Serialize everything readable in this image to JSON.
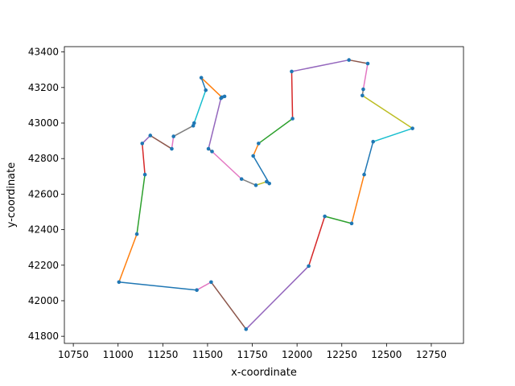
{
  "chart_data": {
    "type": "line",
    "title": "",
    "xlabel": "x-coordinate",
    "ylabel": "y-coordinate",
    "xlim": [
      10700,
      12930
    ],
    "ylim": [
      41760,
      43430
    ],
    "xticks": [
      10750,
      11000,
      11250,
      11500,
      11750,
      12000,
      12250,
      12500,
      12750
    ],
    "yticks": [
      41800,
      42000,
      42200,
      42400,
      42600,
      42800,
      43000,
      43200,
      43400
    ],
    "grid": false,
    "marker_color": "#1f77b4",
    "palette": [
      "#1f77b4",
      "#ff7f0e",
      "#2ca02c",
      "#d62728",
      "#9467bd",
      "#8c564b",
      "#e377c2",
      "#7f7f7f",
      "#bcbd22",
      "#17becf"
    ],
    "route": [
      [
        11440,
        42060
      ],
      [
        11005,
        42105
      ],
      [
        11105,
        42375
      ],
      [
        11150,
        42710
      ],
      [
        11135,
        42885
      ],
      [
        11180,
        42930
      ],
      [
        11300,
        42855
      ],
      [
        11310,
        42925
      ],
      [
        11420,
        42985
      ],
      [
        11425,
        43000
      ],
      [
        11490,
        43185
      ],
      [
        11465,
        43255
      ],
      [
        11580,
        43145
      ],
      [
        11595,
        43150
      ],
      [
        11575,
        43140
      ],
      [
        11505,
        42855
      ],
      [
        11525,
        42840
      ],
      [
        11690,
        42685
      ],
      [
        11770,
        42650
      ],
      [
        11830,
        42670
      ],
      [
        11845,
        42660
      ],
      [
        11755,
        42815
      ],
      [
        11785,
        42885
      ],
      [
        11975,
        43025
      ],
      [
        11970,
        43290
      ],
      [
        12290,
        43355
      ],
      [
        12395,
        43335
      ],
      [
        12370,
        43190
      ],
      [
        12365,
        43155
      ],
      [
        12645,
        42970
      ],
      [
        12425,
        42895
      ],
      [
        12375,
        42710
      ],
      [
        12305,
        42435
      ],
      [
        12155,
        42475
      ],
      [
        12065,
        42195
      ],
      [
        11715,
        41840
      ],
      [
        11520,
        42105
      ],
      [
        11440,
        42060
      ]
    ]
  }
}
